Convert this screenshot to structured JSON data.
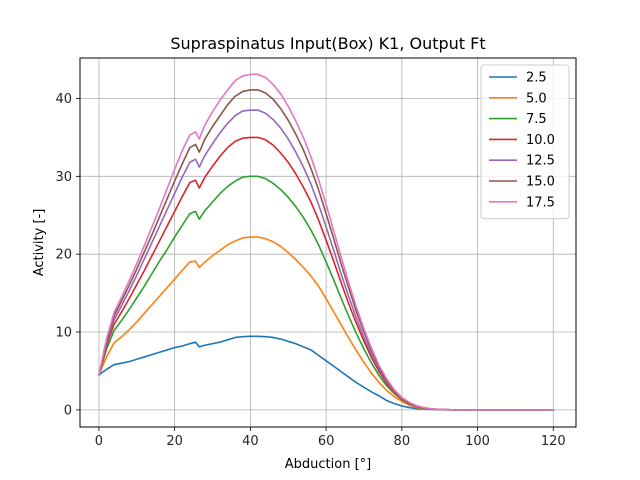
{
  "chart_data": {
    "type": "line",
    "title": "Supraspinatus Input(Box) K1, Output Ft",
    "xlabel": "Abduction [°]",
    "ylabel": "Activity [-]",
    "xlim": [
      -5,
      126
    ],
    "ylim": [
      -2.2,
      45.2
    ],
    "xticks": [
      0,
      20,
      40,
      60,
      80,
      100,
      120
    ],
    "yticks": [
      0,
      10,
      20,
      30,
      40
    ],
    "grid": true,
    "legend_position": "top-right",
    "x": [
      0,
      2,
      4,
      6,
      8,
      10,
      12,
      14,
      16,
      18,
      20,
      22,
      24,
      25.5,
      26.5,
      28,
      30,
      32,
      34,
      36,
      38,
      40,
      42,
      44,
      46,
      48,
      50,
      52,
      54,
      56,
      58,
      60,
      62,
      64,
      66,
      68,
      70,
      72,
      74,
      76,
      78,
      80,
      82,
      84,
      86,
      88,
      90,
      92,
      94,
      96,
      98,
      100,
      102,
      104,
      106,
      108,
      110,
      112,
      114,
      116,
      118,
      120
    ],
    "series": [
      {
        "name": "2.5",
        "color": "#1f77b4",
        "values": [
          4.5,
          5.2,
          5.8,
          6.0,
          6.2,
          6.5,
          6.8,
          7.1,
          7.4,
          7.7,
          8.0,
          8.2,
          8.5,
          8.7,
          8.1,
          8.3,
          8.5,
          8.7,
          9.0,
          9.3,
          9.4,
          9.45,
          9.45,
          9.4,
          9.3,
          9.1,
          8.8,
          8.5,
          8.1,
          7.7,
          7.0,
          6.3,
          5.6,
          4.9,
          4.2,
          3.5,
          2.9,
          2.3,
          1.8,
          1.2,
          0.8,
          0.5,
          0.3,
          0.15,
          0.1,
          0.05,
          0.02,
          0.01,
          0,
          0,
          0,
          0,
          0,
          0,
          0,
          0,
          0,
          0,
          0,
          0,
          0,
          0
        ]
      },
      {
        "name": "5.0",
        "color": "#ff7f0e",
        "values": [
          4.5,
          6.8,
          8.6,
          9.4,
          10.3,
          11.3,
          12.4,
          13.5,
          14.6,
          15.7,
          16.8,
          17.9,
          19.0,
          19.1,
          18.3,
          19.0,
          19.8,
          20.5,
          21.2,
          21.7,
          22.1,
          22.2,
          22.2,
          22.0,
          21.6,
          21.0,
          20.2,
          19.3,
          18.3,
          17.2,
          15.9,
          14.3,
          12.6,
          10.9,
          9.2,
          7.6,
          6.1,
          4.7,
          3.5,
          2.5,
          1.7,
          1.1,
          0.6,
          0.3,
          0.15,
          0.08,
          0.03,
          0.01,
          0,
          0,
          0,
          0,
          0,
          0,
          0,
          0,
          0,
          0,
          0,
          0,
          0,
          0
        ]
      },
      {
        "name": "7.5",
        "color": "#2ca02c",
        "values": [
          4.5,
          7.8,
          10.2,
          11.5,
          12.9,
          14.4,
          15.9,
          17.5,
          19.1,
          20.6,
          22.2,
          23.7,
          25.2,
          25.5,
          24.5,
          25.6,
          26.7,
          27.8,
          28.7,
          29.4,
          29.9,
          30.0,
          30.0,
          29.7,
          29.1,
          28.3,
          27.3,
          26.1,
          24.7,
          23.1,
          21.2,
          19.0,
          16.7,
          14.3,
          12.0,
          9.8,
          7.8,
          6.0,
          4.4,
          3.1,
          2.1,
          1.3,
          0.75,
          0.4,
          0.2,
          0.1,
          0.04,
          0.02,
          0,
          0,
          0,
          0,
          0,
          0,
          0,
          0,
          0,
          0,
          0,
          0,
          0,
          0
        ]
      },
      {
        "name": "10.0",
        "color": "#d62728",
        "values": [
          4.5,
          8.3,
          11.0,
          12.6,
          14.3,
          16.1,
          17.9,
          19.8,
          21.7,
          23.6,
          25.5,
          27.4,
          29.2,
          29.5,
          28.5,
          29.9,
          31.3,
          32.6,
          33.7,
          34.5,
          34.9,
          35.0,
          35.0,
          34.7,
          34.0,
          33.0,
          31.8,
          30.3,
          28.6,
          26.7,
          24.4,
          21.8,
          19.1,
          16.3,
          13.6,
          11.1,
          8.8,
          6.7,
          4.9,
          3.4,
          2.3,
          1.4,
          0.8,
          0.45,
          0.22,
          0.1,
          0.05,
          0.02,
          0,
          0,
          0,
          0,
          0,
          0,
          0,
          0,
          0,
          0,
          0,
          0,
          0,
          0
        ]
      },
      {
        "name": "12.5",
        "color": "#9467bd",
        "values": [
          4.5,
          8.6,
          11.6,
          13.4,
          15.3,
          17.3,
          19.4,
          21.5,
          23.6,
          25.7,
          27.8,
          29.9,
          31.8,
          32.2,
          31.2,
          32.7,
          34.2,
          35.6,
          36.8,
          37.8,
          38.4,
          38.5,
          38.5,
          38.1,
          37.3,
          36.2,
          34.8,
          33.1,
          31.2,
          29.0,
          26.4,
          23.5,
          20.5,
          17.4,
          14.5,
          11.8,
          9.3,
          7.1,
          5.2,
          3.6,
          2.4,
          1.5,
          0.85,
          0.48,
          0.24,
          0.11,
          0.05,
          0.02,
          0,
          0,
          0,
          0,
          0,
          0,
          0,
          0,
          0,
          0,
          0,
          0,
          0,
          0
        ]
      },
      {
        "name": "15.0",
        "color": "#8c564b",
        "values": [
          4.5,
          8.9,
          12.1,
          14.0,
          16.0,
          18.1,
          20.3,
          22.5,
          24.8,
          27.1,
          29.4,
          31.6,
          33.7,
          34.1,
          33.1,
          34.8,
          36.4,
          37.8,
          39.2,
          40.3,
          40.9,
          41.1,
          41.1,
          40.7,
          39.9,
          38.7,
          37.2,
          35.4,
          33.4,
          31.0,
          28.3,
          25.2,
          22.0,
          18.7,
          15.6,
          12.6,
          10.0,
          7.6,
          5.5,
          3.8,
          2.5,
          1.6,
          0.9,
          0.5,
          0.25,
          0.12,
          0.05,
          0.02,
          0,
          0,
          0,
          0,
          0,
          0,
          0,
          0,
          0,
          0,
          0,
          0,
          0,
          0
        ]
      },
      {
        "name": "17.5",
        "color": "#e377c2",
        "values": [
          4.5,
          9.1,
          12.5,
          14.5,
          16.6,
          18.8,
          21.1,
          23.5,
          25.9,
          28.4,
          30.9,
          33.3,
          35.3,
          35.7,
          34.8,
          36.6,
          38.3,
          39.8,
          41.1,
          42.3,
          42.9,
          43.1,
          43.1,
          42.7,
          41.8,
          40.6,
          39.0,
          37.1,
          35.0,
          32.5,
          29.6,
          26.4,
          23.0,
          19.6,
          16.3,
          13.2,
          10.4,
          7.9,
          5.7,
          4.0,
          2.6,
          1.6,
          0.95,
          0.52,
          0.26,
          0.12,
          0.05,
          0.02,
          0,
          0,
          0,
          0,
          0,
          0,
          0,
          0,
          0,
          0,
          0,
          0,
          0,
          0
        ]
      }
    ]
  }
}
